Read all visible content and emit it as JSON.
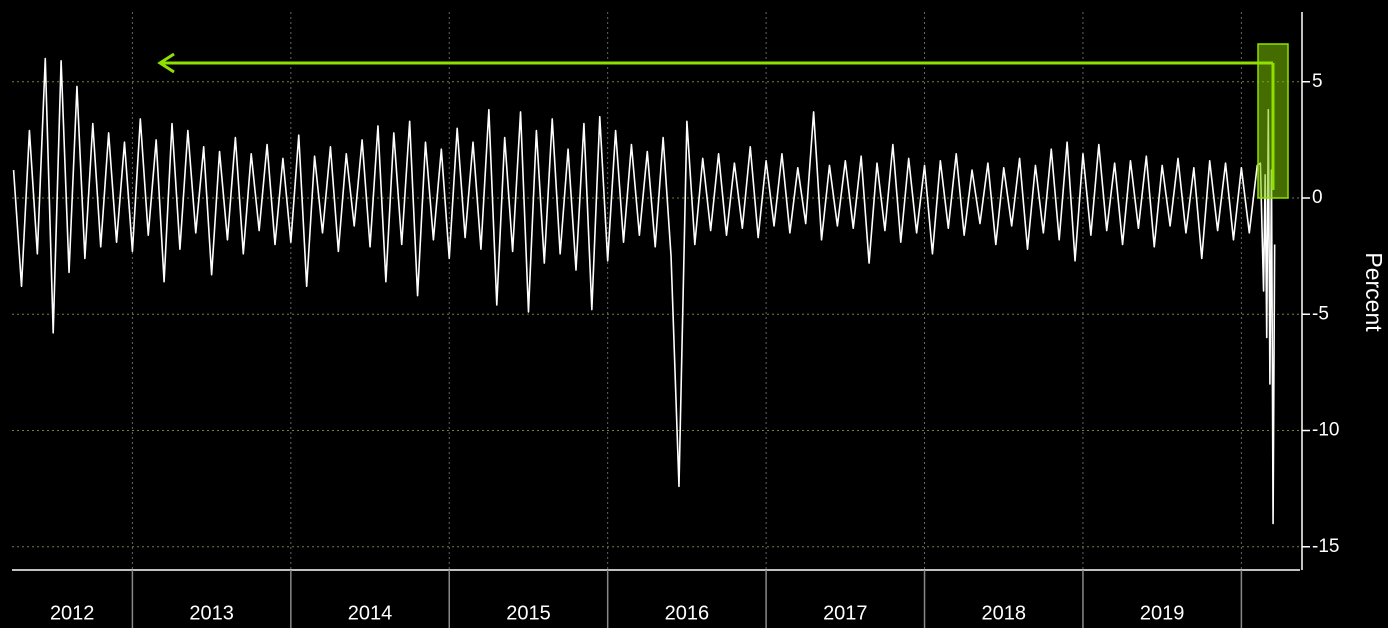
{
  "chart_data": {
    "type": "line",
    "y_label": "Percent",
    "x": [
      2012.25,
      2012.3,
      2012.35,
      2012.4,
      2012.45,
      2012.5,
      2012.55,
      2012.6,
      2012.65,
      2012.7,
      2012.75,
      2012.8,
      2012.85,
      2012.9,
      2012.95,
      2013,
      2013.05,
      2013.1,
      2013.15,
      2013.2,
      2013.25,
      2013.3,
      2013.35,
      2013.4,
      2013.45,
      2013.5,
      2013.55,
      2013.6,
      2013.65,
      2013.7,
      2013.75,
      2013.8,
      2013.85,
      2013.9,
      2013.95,
      2014,
      2014.05,
      2014.1,
      2014.15,
      2014.2,
      2014.25,
      2014.3,
      2014.35,
      2014.4,
      2014.45,
      2014.5,
      2014.55,
      2014.6,
      2014.65,
      2014.7,
      2014.75,
      2014.8,
      2014.85,
      2014.9,
      2014.95,
      2015,
      2015.05,
      2015.1,
      2015.15,
      2015.2,
      2015.25,
      2015.3,
      2015.35,
      2015.4,
      2015.45,
      2015.5,
      2015.55,
      2015.6,
      2015.65,
      2015.7,
      2015.75,
      2015.8,
      2015.85,
      2015.9,
      2015.95,
      2016,
      2016.05,
      2016.1,
      2016.15,
      2016.2,
      2016.25,
      2016.3,
      2016.35,
      2016.4,
      2016.45,
      2016.5,
      2016.55,
      2016.6,
      2016.65,
      2016.7,
      2016.75,
      2016.8,
      2016.85,
      2016.9,
      2016.95,
      2017,
      2017.05,
      2017.1,
      2017.15,
      2017.2,
      2017.25,
      2017.3,
      2017.35,
      2017.4,
      2017.45,
      2017.5,
      2017.55,
      2017.6,
      2017.65,
      2017.7,
      2017.75,
      2017.8,
      2017.85,
      2017.9,
      2017.95,
      2018,
      2018.05,
      2018.1,
      2018.15,
      2018.2,
      2018.25,
      2018.3,
      2018.35,
      2018.4,
      2018.45,
      2018.5,
      2018.55,
      2018.6,
      2018.65,
      2018.7,
      2018.75,
      2018.8,
      2018.85,
      2018.9,
      2018.95,
      2019,
      2019.05,
      2019.1,
      2019.15,
      2019.2,
      2019.25,
      2019.3,
      2019.35,
      2019.4,
      2019.45,
      2019.5,
      2019.55,
      2019.6,
      2019.65,
      2019.7,
      2019.75,
      2019.8,
      2019.85,
      2019.9,
      2019.95,
      2020,
      2020.05,
      2020.1,
      2020.12,
      2020.14,
      2020.15,
      2020.16,
      2020.17,
      2020.18,
      2020.19,
      2020.2,
      2020.21
    ],
    "series": [
      {
        "color": "#ffffff",
        "values": [
          1.2,
          -3.8,
          2.9,
          -2.4,
          6.0,
          -5.8,
          5.9,
          -3.2,
          4.8,
          -2.6,
          3.2,
          -2.1,
          2.8,
          -1.9,
          2.4,
          -2.3,
          3.4,
          -1.6,
          2.5,
          -3.6,
          3.2,
          -2.2,
          2.9,
          -1.5,
          2.2,
          -3.3,
          2.0,
          -1.8,
          2.6,
          -2.4,
          1.9,
          -1.4,
          2.3,
          -2.0,
          1.7,
          -1.9,
          2.7,
          -3.8,
          1.8,
          -1.5,
          2.2,
          -2.3,
          1.9,
          -1.2,
          2.5,
          -2.1,
          3.1,
          -3.6,
          2.8,
          -2.0,
          3.3,
          -4.2,
          2.4,
          -1.8,
          2.1,
          -2.6,
          3.0,
          -1.7,
          2.4,
          -2.2,
          3.8,
          -4.6,
          2.6,
          -2.3,
          3.7,
          -4.9,
          2.9,
          -2.8,
          3.4,
          -2.4,
          2.1,
          -3.1,
          3.2,
          -4.8,
          3.5,
          -2.7,
          2.9,
          -1.9,
          2.3,
          -1.6,
          2.0,
          -2.1,
          2.6,
          -2.5,
          -12.4,
          3.3,
          -2.0,
          1.7,
          -1.4,
          1.9,
          -1.6,
          1.5,
          -1.3,
          2.2,
          -1.7,
          1.6,
          -1.2,
          1.9,
          -1.5,
          1.3,
          -1.1,
          3.7,
          -1.8,
          1.4,
          -1.2,
          1.6,
          -1.3,
          1.8,
          -2.8,
          1.5,
          -1.4,
          2.3,
          -1.9,
          1.7,
          -1.5,
          1.4,
          -2.4,
          1.6,
          -1.3,
          1.9,
          -1.6,
          1.2,
          -1.1,
          1.5,
          -2.0,
          1.3,
          -1.2,
          1.7,
          -2.2,
          1.4,
          -1.5,
          2.1,
          -1.8,
          2.4,
          -2.7,
          1.9,
          -1.6,
          2.3,
          -1.4,
          1.5,
          -2.0,
          1.6,
          -1.3,
          1.8,
          -2.1,
          1.4,
          -1.2,
          1.7,
          -1.5,
          1.3,
          -2.6,
          1.6,
          -1.4,
          1.5,
          -1.8,
          1.3,
          -1.5,
          1.4,
          1.5,
          -4.0,
          1.0,
          -6.0,
          3.8,
          -8.0,
          1.2,
          -14.0,
          -2.0
        ]
      }
    ],
    "xlim": [
      2012.24,
      2020.37
    ],
    "xticks": [
      2013,
      2014,
      2015,
      2016,
      2017,
      2018,
      2019,
      2020
    ],
    "year_labels": [
      "2012",
      "2013",
      "2014",
      "2015",
      "2016",
      "2017",
      "2018",
      "2019"
    ],
    "ylim": [
      -16,
      8
    ],
    "yticks": [
      5,
      0,
      -5,
      -10,
      -15
    ],
    "grid": true
  }
}
